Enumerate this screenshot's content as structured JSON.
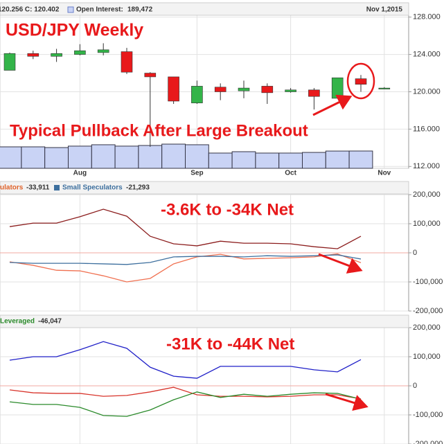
{
  "chart_data": [
    {
      "type": "candlestick",
      "info": "120.256 C: 120.402",
      "oi_label": "Open Interest:",
      "date": "Nov 1,2015",
      "annotations": [
        "USD/JPY Weekly",
        "Typical Pullback After Large Breakout"
      ],
      "categories": [
        null,
        null,
        null,
        "Aug",
        null,
        null,
        null,
        null,
        "Sep",
        null,
        null,
        null,
        "Oct",
        null,
        null,
        null,
        "Nov"
      ],
      "open": [
        122.3,
        124.1,
        123.8,
        124.0,
        124.2,
        124.3,
        122.0,
        121.6,
        118.8,
        120.5,
        120.1,
        120.6,
        120.0,
        120.2,
        119.3,
        121.4,
        120.4
      ],
      "high": [
        124.2,
        124.4,
        124.6,
        125.1,
        125.2,
        124.7,
        122.1,
        121.6,
        121.2,
        120.9,
        121.2,
        120.9,
        120.4,
        120.4,
        121.5,
        121.8,
        120.5
      ],
      "low": [
        122.3,
        123.5,
        123.2,
        123.9,
        123.9,
        121.9,
        114.1,
        118.7,
        118.7,
        119.1,
        119.3,
        118.7,
        119.9,
        118.1,
        119.3,
        120.0,
        120.3
      ],
      "close": [
        124.1,
        123.8,
        124.1,
        124.4,
        124.5,
        122.1,
        121.6,
        119.0,
        120.6,
        120.0,
        120.4,
        119.9,
        120.2,
        119.5,
        121.5,
        120.8,
        120.4
      ],
      "up_color": "#33b449",
      "down_color": "#e8191b",
      "open_interest": {
        "name": "Open Interest",
        "color": "#c9d3f5",
        "values": [
          235000,
          235000,
          227000,
          243000,
          258000,
          243000,
          250000,
          265000,
          258000,
          167000,
          182000,
          167000,
          167000,
          174000,
          189000,
          189472,
          null
        ],
        "value_labels": [
          null,
          null,
          null,
          null,
          null,
          null,
          null,
          null,
          null,
          null,
          null,
          null,
          null,
          null,
          null,
          "189,472",
          null
        ]
      },
      "ylim": [
        111.8,
        128.2
      ],
      "yticks": [
        {
          "value": 112,
          "label": "112.000"
        },
        {
          "value": 116,
          "label": "116.000"
        },
        {
          "value": 120,
          "label": "120.000"
        },
        {
          "value": 124,
          "label": "124.000"
        },
        {
          "value": 128,
          "label": "128.000"
        }
      ],
      "y2lim": [
        0,
        1675000
      ],
      "grid": true
    },
    {
      "type": "line",
      "annotations": [
        "-3.6K to -34K Net"
      ],
      "series": [
        {
          "color": "#8b1c1c",
          "values": [
            90000,
            102000,
            102000,
            124000,
            150000,
            126000,
            57000,
            31000,
            24000,
            40000,
            33000,
            33000,
            31000,
            21000,
            14000,
            57000
          ]
        },
        {
          "name": "ulators",
          "color": "#f07050",
          "values": [
            -31000,
            -43000,
            -60000,
            -62000,
            -79000,
            -100000,
            -88000,
            -38000,
            -14000,
            -5000,
            -21000,
            -19000,
            -17000,
            -14000,
            -3600,
            -33911
          ],
          "value_labels": [
            null,
            null,
            null,
            null,
            null,
            null,
            null,
            null,
            null,
            null,
            null,
            null,
            null,
            null,
            null,
            "-33,911"
          ]
        },
        {
          "name": "Small Speculators",
          "color": "#3d6f9e",
          "values": [
            -33000,
            -36000,
            -36000,
            -36000,
            -38000,
            -40000,
            -33000,
            -14000,
            -12000,
            -12000,
            -14000,
            -10000,
            -12000,
            -10000,
            -7000,
            -21293
          ],
          "value_labels": [
            null,
            null,
            null,
            null,
            null,
            null,
            null,
            null,
            null,
            null,
            null,
            null,
            null,
            null,
            null,
            "-21,293"
          ]
        }
      ],
      "ylim": [
        -200000,
        200000
      ],
      "yticks": [
        {
          "value": -200000,
          "label": "-200,000"
        },
        {
          "value": -100000,
          "label": "-100,000"
        },
        0,
        {
          "value": 100000,
          "label": "100,000"
        },
        {
          "value": 200000,
          "label": "200,000"
        }
      ],
      "grid": true
    },
    {
      "type": "line",
      "annotations": [
        "-31K to -44K Net"
      ],
      "series": [
        {
          "color": "#1f1fc8",
          "values": [
            88000,
            100000,
            100000,
            124000,
            152000,
            129000,
            64000,
            33000,
            26000,
            67000,
            67000,
            67000,
            67000,
            55000,
            48000,
            90000
          ]
        },
        {
          "color": "#d8332a",
          "values": [
            -14000,
            -24000,
            -26000,
            -26000,
            -36000,
            -33000,
            -21000,
            -5000,
            -31000,
            -36000,
            -36000,
            -38000,
            -36000,
            -31000,
            -31000,
            -45000
          ]
        },
        {
          "name": "Leveraged",
          "color": "#2a8a2a",
          "values": [
            -55000,
            -64000,
            -64000,
            -74000,
            -102000,
            -105000,
            -83000,
            -48000,
            -21000,
            -40000,
            -29000,
            -36000,
            -29000,
            -24000,
            -26000,
            -46047
          ],
          "value_labels": [
            null,
            null,
            null,
            null,
            null,
            null,
            null,
            null,
            null,
            null,
            null,
            null,
            null,
            null,
            null,
            "-46,047"
          ]
        }
      ],
      "ylim": [
        -200000,
        200000
      ],
      "yticks": [
        {
          "value": -200000,
          "label": "-200,000"
        },
        {
          "value": -100000,
          "label": "-100,000"
        },
        0,
        {
          "value": 100000,
          "label": "100,000"
        },
        {
          "value": 200000,
          "label": "200,000"
        }
      ],
      "grid": true
    }
  ]
}
